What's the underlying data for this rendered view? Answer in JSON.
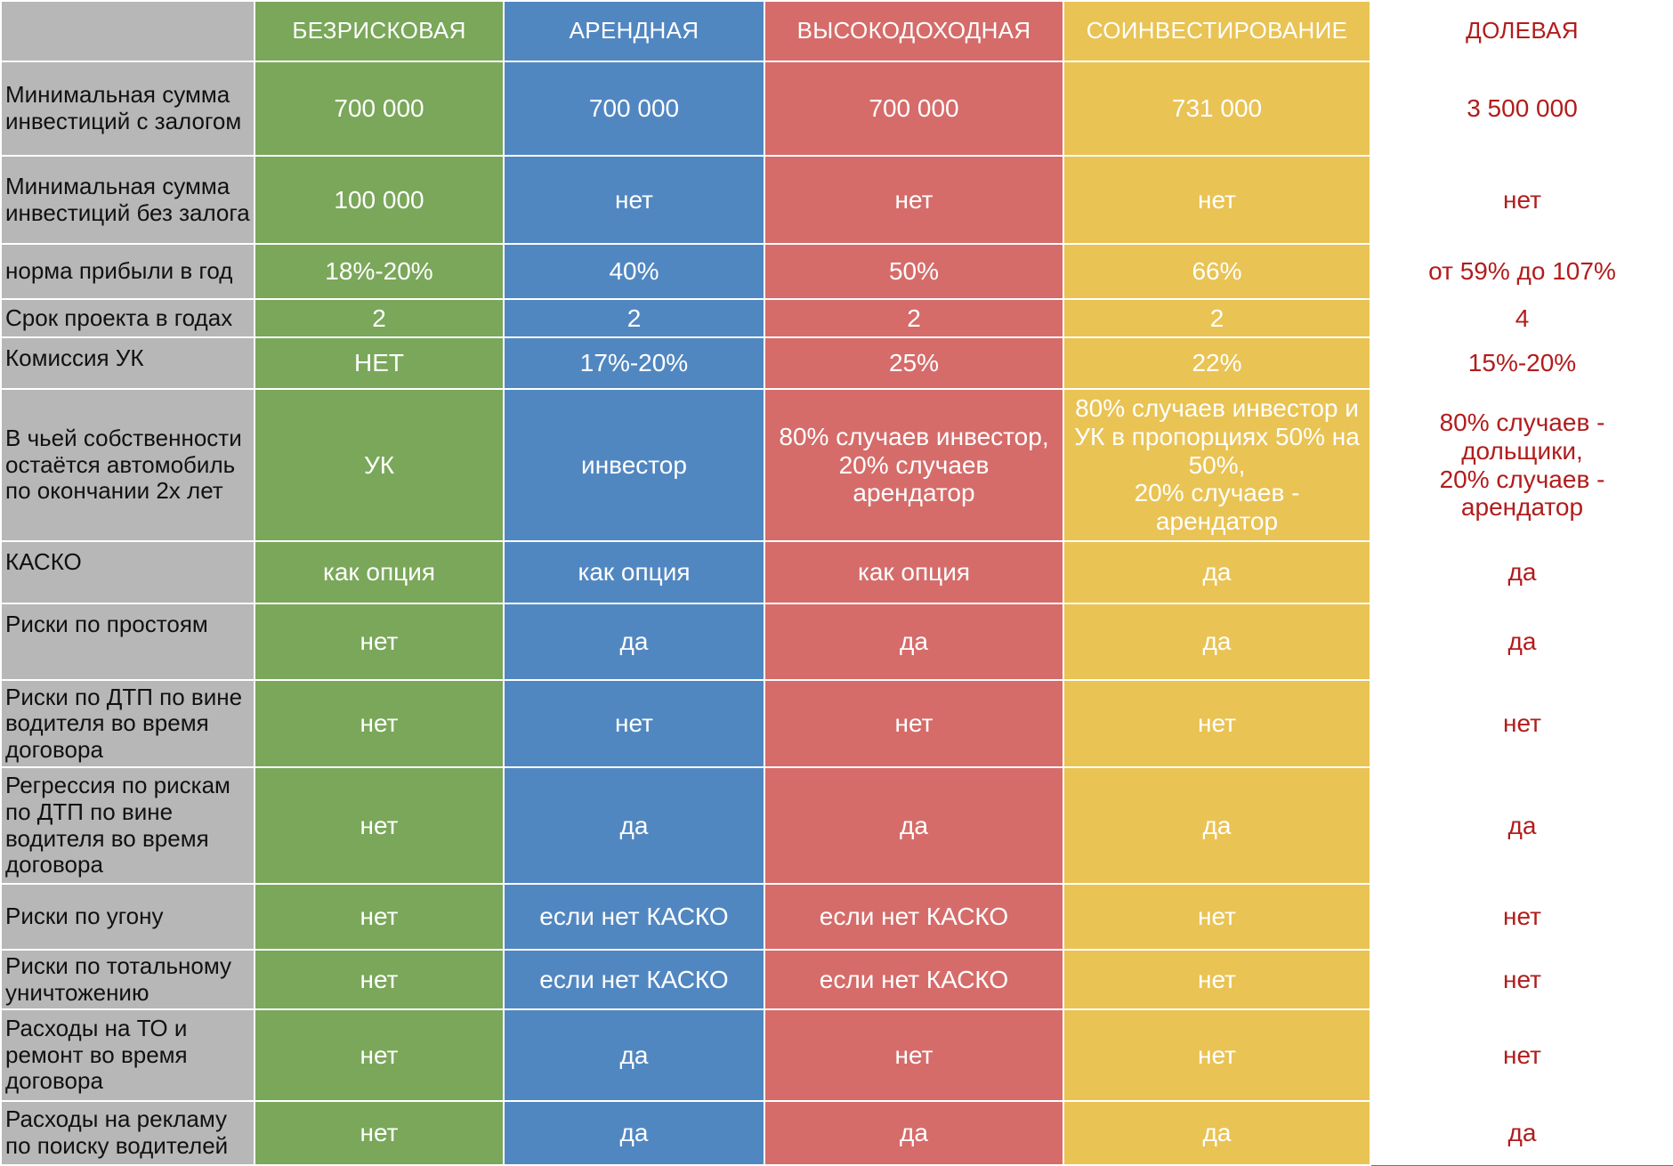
{
  "columns": [
    {
      "key": "bezriskovaya",
      "label": "БЕЗРИСКОВАЯ",
      "color": "#7aa75a"
    },
    {
      "key": "arendnaya",
      "label": "АРЕНДНАЯ",
      "color": "#5187c1"
    },
    {
      "key": "vysokodokhodnaya",
      "label": "ВЫСОКОДОХОДНАЯ",
      "color": "#d56c6a"
    },
    {
      "key": "soinvestirovanie",
      "label": "СОИНВЕСТИРОВАНИЕ",
      "color": "#e9c354"
    },
    {
      "key": "dolevaya",
      "label": "ДОЛЕВАЯ",
      "color": "#ffffff",
      "text_color": "#b21c1c"
    }
  ],
  "rows": [
    {
      "label": "Минимальная сумма инвестиций с залогом",
      "values": [
        "700 000",
        "700 000",
        "700 000",
        "731 000",
        "3 500 000"
      ]
    },
    {
      "label": "Минимальная сумма инвестиций без залога",
      "values": [
        "100 000",
        "нет",
        "нет",
        "нет",
        "нет"
      ]
    },
    {
      "label": "норма прибыли в год",
      "values": [
        "18%-20%",
        "40%",
        "50%",
        "66%",
        "от 59% до 107%"
      ]
    },
    {
      "label": "Срок проекта в годах",
      "values": [
        "2",
        "2",
        "2",
        "2",
        "4"
      ]
    },
    {
      "label": "Комиссия УК",
      "values": [
        "НЕТ",
        "17%-20%",
        "25%",
        "22%",
        "15%-20%"
      ]
    },
    {
      "label": "В чьей собственности остаётся автомобиль по окончании 2х лет",
      "values": [
        "УК",
        "инвестор",
        "80% случаев инвестор,\n20% случаев\nарендатор",
        "80% случаев инвестор и УК в пропорциях 50% на 50%,\n20% случаев -\nарендатор",
        "80% случаев -\nдольщики,\n20% случаев -\nарендатор"
      ]
    },
    {
      "label": "КАСКО",
      "values": [
        "как опция",
        "как опция",
        "как опция",
        "да",
        "да"
      ]
    },
    {
      "label": "Риски по простоям",
      "values": [
        "нет",
        "да",
        "да",
        "да",
        "да"
      ]
    },
    {
      "label": "Риски по ДТП по вине водителя во время договора",
      "values": [
        "нет",
        "нет",
        "нет",
        "нет",
        "нет"
      ]
    },
    {
      "label": "Регрессия по рискам по ДТП по вине водителя во время договора",
      "values": [
        "нет",
        "да",
        "да",
        "да",
        "да"
      ]
    },
    {
      "label": "Риски по угону",
      "values": [
        "нет",
        "если нет КАСКО",
        "если нет КАСКО",
        "нет",
        "нет"
      ]
    },
    {
      "label": "Риски по тотальному уничтожению",
      "values": [
        "нет",
        "если нет КАСКО",
        "если нет КАСКО",
        "нет",
        "нет"
      ]
    },
    {
      "label": "Расходы на ТО и ремонт во время договора",
      "values": [
        "нет",
        "да",
        "нет",
        "нет",
        "нет"
      ]
    },
    {
      "label": "Расходы на рекламу по поиску водителей",
      "values": [
        "нет",
        "да",
        "да",
        "да",
        "да"
      ]
    }
  ]
}
